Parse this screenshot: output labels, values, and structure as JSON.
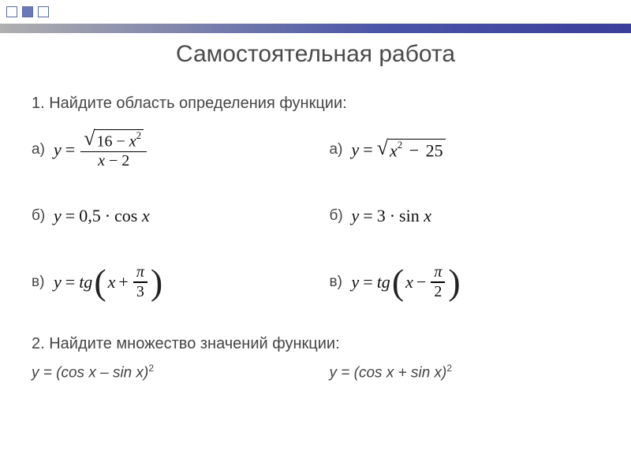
{
  "decor": {
    "square_border_color": "#5a6aa2",
    "square_fill_color": "#6a7ab8",
    "bar_gradient_from": "#b0b0b0",
    "bar_gradient_mid": "#4a55a8",
    "bar_gradient_to": "#3a3f9a"
  },
  "title": "Самостоятельная работа",
  "task1": {
    "prompt": "1. Найдите область определения функции:",
    "labels": {
      "a": "а)",
      "b": "б)",
      "v": "в)"
    },
    "left": {
      "a": {
        "y": "y",
        "eq": "=",
        "num_pre": "16",
        "minus": "−",
        "x": "x",
        "sq": "2",
        "den_x": "x",
        "den_m": "−",
        "den_c": "2"
      },
      "b": {
        "y": "y",
        "eq": "=",
        "c": "0,5",
        "dot": "·",
        "cos": "cos",
        "x": "x"
      },
      "v": {
        "y": "y",
        "eq": "=",
        "tg": "tg",
        "x": "x",
        "plus": "+",
        "pi": "π",
        "three": "3"
      }
    },
    "right": {
      "a": {
        "y": "y",
        "eq": "=",
        "x": "x",
        "sq": "2",
        "minus": "−",
        "c": "25"
      },
      "b": {
        "y": "y",
        "eq": "=",
        "c": "3",
        "dot": "·",
        "sin": "sin",
        "x": "x"
      },
      "v": {
        "y": "y",
        "eq": "=",
        "tg": "tg",
        "x": "x",
        "minus": "−",
        "pi": "π",
        "two": "2"
      }
    }
  },
  "task2": {
    "prompt": "2. Найдите множество значений функции:",
    "left": "y = (cos x – sin x)",
    "right": "y = (cos x + sin x)",
    "exp": "2"
  }
}
